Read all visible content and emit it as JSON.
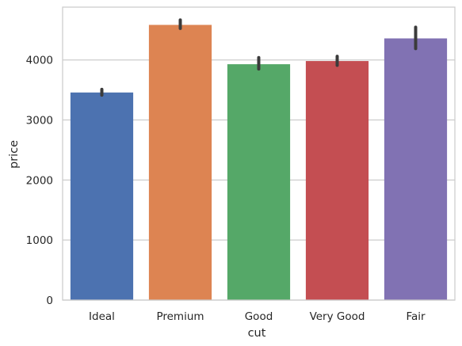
{
  "chart_data": {
    "type": "bar",
    "title": "",
    "xlabel": "cut",
    "ylabel": "price",
    "categories": [
      "Ideal",
      "Premium",
      "Good",
      "Very Good",
      "Fair"
    ],
    "values": [
      3458,
      4584,
      3929,
      3982,
      4359
    ],
    "error_bars": [
      [
        3415,
        3510
      ],
      [
        4525,
        4665
      ],
      [
        3850,
        4040
      ],
      [
        3910,
        4060
      ],
      [
        4190,
        4545
      ]
    ],
    "colors": [
      "#4c72b0",
      "#dd8452",
      "#55a868",
      "#c44e52",
      "#8172b3"
    ],
    "error_bar_color": "#3b3b3b",
    "ylim": [
      0,
      4880
    ],
    "yticks": [
      0,
      1000,
      2000,
      3000,
      4000
    ],
    "ytick_labels": [
      "0",
      "1000",
      "2000",
      "3000",
      "4000"
    ],
    "grid": "horizontal",
    "grid_color": "#cccccc",
    "legend": "none"
  }
}
